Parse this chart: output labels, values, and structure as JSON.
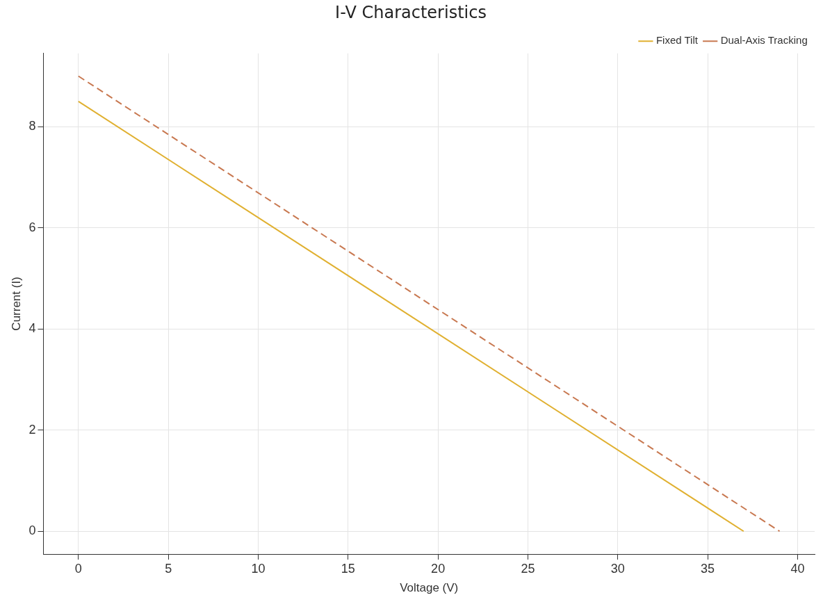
{
  "chart_data": {
    "type": "line",
    "title": "I-V Characteristics",
    "xlabel": "Voltage (V)",
    "ylabel": "Current (I)",
    "x": [
      0,
      37
    ],
    "series": [
      {
        "name": "Fixed Tilt",
        "color": "#e0b030",
        "values": [
          8.5,
          0
        ],
        "line_style": "solid"
      },
      {
        "name": "Dual-Axis Tracking",
        "color": "#c87850",
        "values": [
          9,
          0
        ],
        "x": [
          0,
          39
        ],
        "line_style": "dashed"
      }
    ],
    "xlim": [
      -1.95,
      40.95
    ],
    "ylim": [
      -0.45,
      9.45
    ],
    "xticks": [
      0,
      5,
      10,
      15,
      20,
      25,
      30,
      35,
      40
    ],
    "yticks": [
      0,
      2,
      4,
      6,
      8
    ],
    "grid": true,
    "legend": "top right",
    "marker": "none"
  }
}
